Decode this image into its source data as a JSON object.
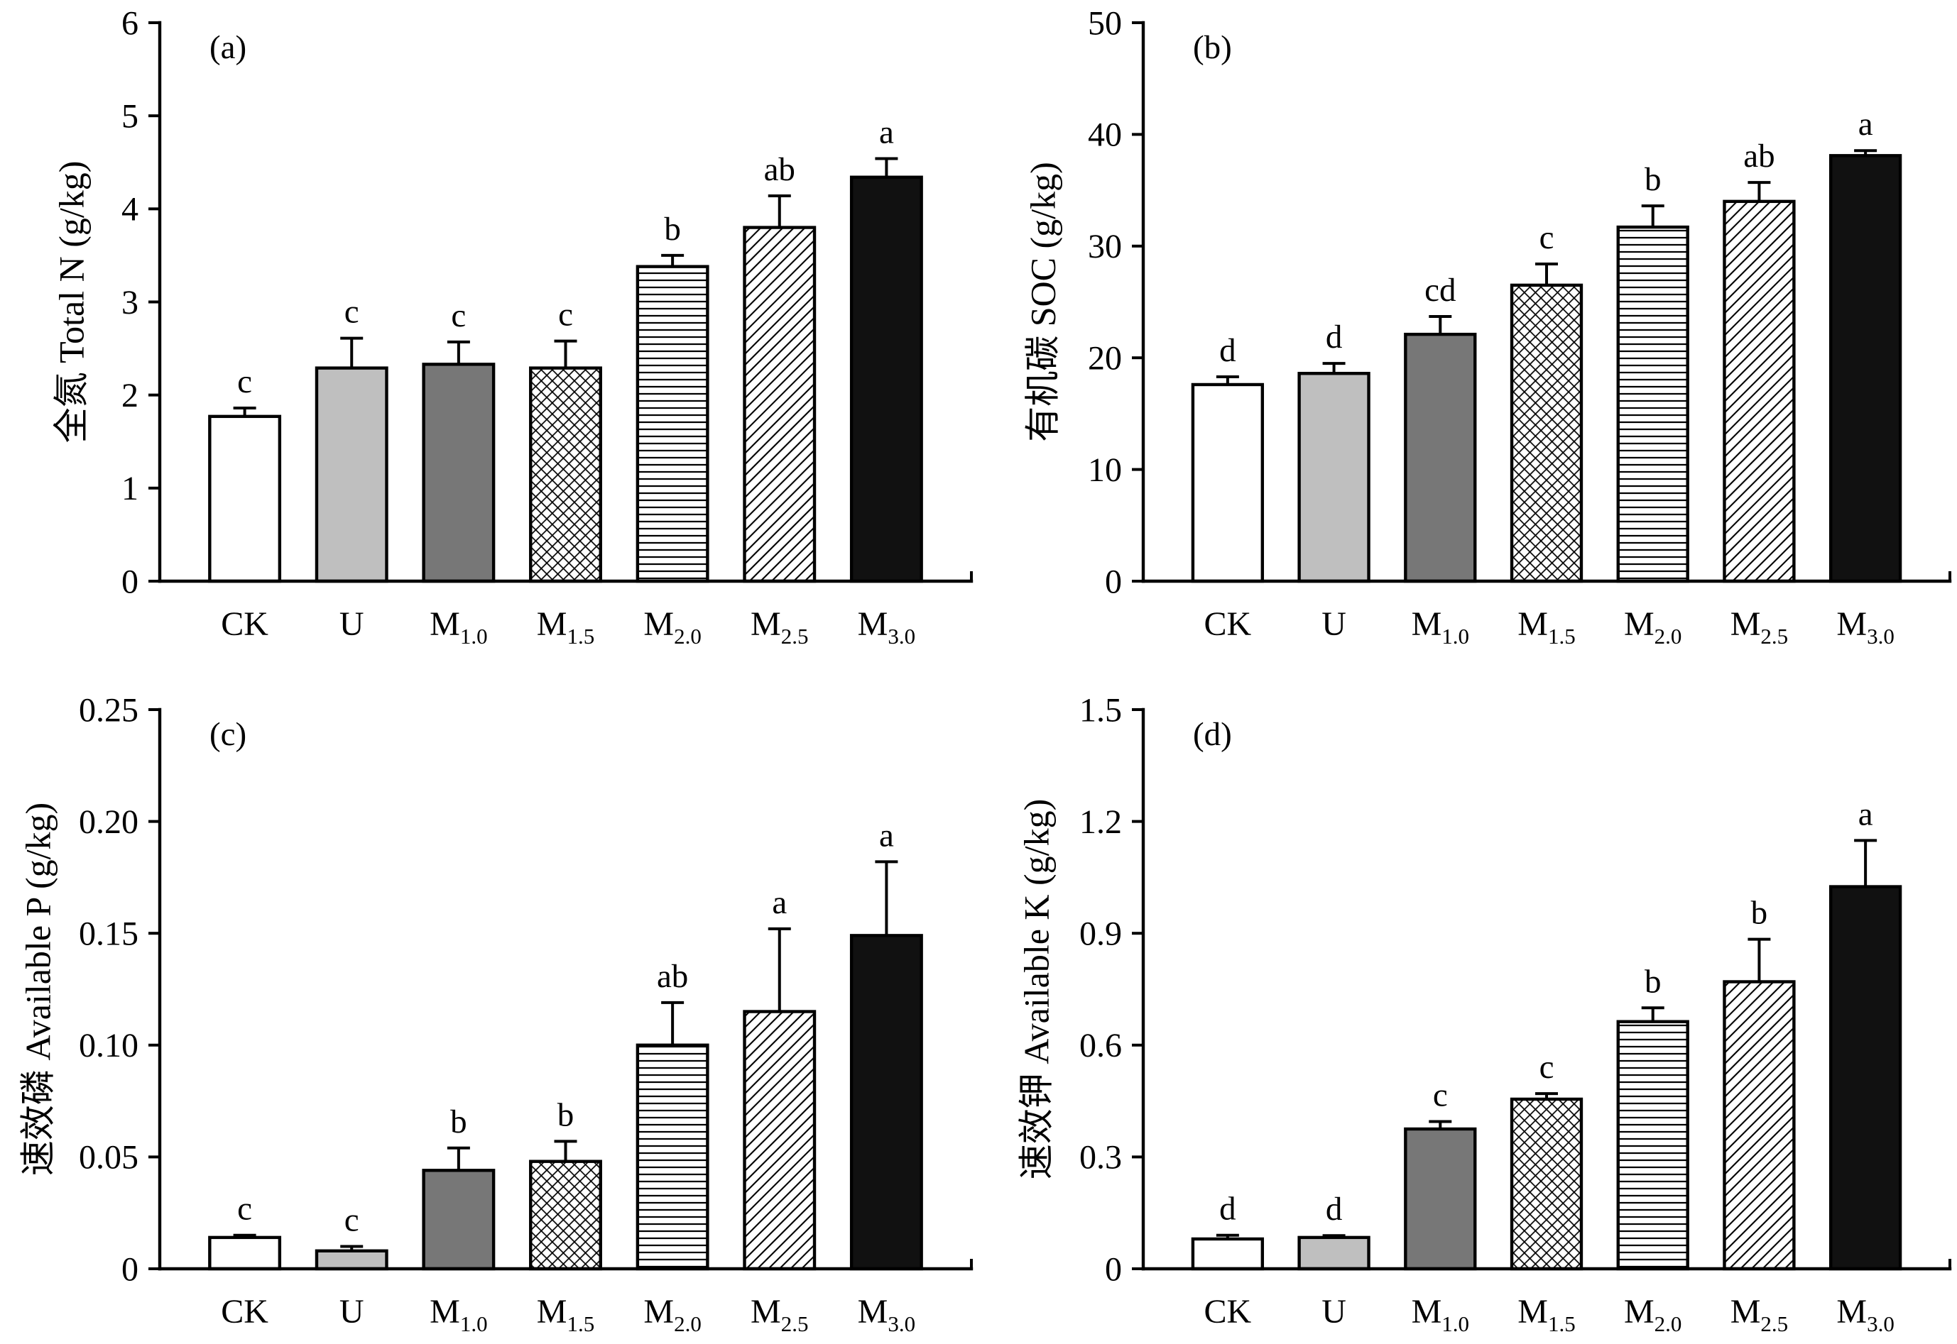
{
  "figure": {
    "series_fills": [
      "#ffffff",
      "#bfbfbf",
      "#777777",
      "pattern-crosshatch",
      "pattern-horizontal",
      "pattern-diagonal",
      "#111111"
    ]
  },
  "chart_data": [
    {
      "type": "bar",
      "panel_label": "(a)",
      "ylabel": "全氮 Total N (g/kg)",
      "ylim": [
        0,
        6
      ],
      "yticks": [
        0,
        1,
        2,
        3,
        4,
        5,
        6
      ],
      "ytick_labels": [
        "0",
        "1",
        "2",
        "3",
        "4",
        "5",
        "6"
      ],
      "categories": [
        {
          "base": "CK"
        },
        {
          "base": "U"
        },
        {
          "base": "M",
          "sub": "1.0"
        },
        {
          "base": "M",
          "sub": "1.5"
        },
        {
          "base": "M",
          "sub": "2.0"
        },
        {
          "base": "M",
          "sub": "2.5"
        },
        {
          "base": "M",
          "sub": "3.0"
        }
      ],
      "values": [
        1.77,
        2.29,
        2.33,
        2.29,
        3.38,
        3.8,
        4.34
      ],
      "errors": [
        0.09,
        0.32,
        0.24,
        0.29,
        0.12,
        0.34,
        0.2
      ],
      "letters": [
        "c",
        "c",
        "c",
        "c",
        "b",
        "ab",
        "a"
      ]
    },
    {
      "type": "bar",
      "panel_label": "(b)",
      "ylabel": "有机碳 SOC (g/kg)",
      "ylim": [
        0,
        50
      ],
      "yticks": [
        0,
        10,
        20,
        30,
        40,
        50
      ],
      "ytick_labels": [
        "0",
        "10",
        "20",
        "30",
        "40",
        "50"
      ],
      "categories": [
        {
          "base": "CK"
        },
        {
          "base": "U"
        },
        {
          "base": "M",
          "sub": "1.0"
        },
        {
          "base": "M",
          "sub": "1.5"
        },
        {
          "base": "M",
          "sub": "2.0"
        },
        {
          "base": "M",
          "sub": "2.5"
        },
        {
          "base": "M",
          "sub": "3.0"
        }
      ],
      "values": [
        17.6,
        18.6,
        22.1,
        26.5,
        31.7,
        34.0,
        38.1
      ],
      "errors": [
        0.7,
        0.9,
        1.6,
        1.9,
        1.9,
        1.7,
        0.45
      ],
      "letters": [
        "d",
        "d",
        "cd",
        "c",
        "b",
        "ab",
        "a"
      ]
    },
    {
      "type": "bar",
      "panel_label": "(c)",
      "ylabel": "速效磷 Available P (g/kg)",
      "ylim": [
        0,
        0.25
      ],
      "yticks": [
        0,
        0.05,
        0.1,
        0.15,
        0.2,
        0.25
      ],
      "ytick_labels": [
        "0",
        "0.05",
        "0.10",
        "0.15",
        "0.20",
        "0.25"
      ],
      "categories": [
        {
          "base": "CK"
        },
        {
          "base": "U"
        },
        {
          "base": "M",
          "sub": "1.0"
        },
        {
          "base": "M",
          "sub": "1.5"
        },
        {
          "base": "M",
          "sub": "2.0"
        },
        {
          "base": "M",
          "sub": "2.5"
        },
        {
          "base": "M",
          "sub": "3.0"
        }
      ],
      "values": [
        0.014,
        0.008,
        0.044,
        0.048,
        0.1,
        0.115,
        0.149
      ],
      "errors": [
        0.001,
        0.002,
        0.01,
        0.009,
        0.019,
        0.037,
        0.033
      ],
      "letters": [
        "c",
        "c",
        "b",
        "b",
        "ab",
        "a",
        "a"
      ]
    },
    {
      "type": "bar",
      "panel_label": "(d)",
      "ylabel": "速效钾 Available K (g/kg)",
      "ylim": [
        0,
        1.5
      ],
      "yticks": [
        0,
        0.3,
        0.6,
        0.9,
        1.2,
        1.5
      ],
      "ytick_labels": [
        "0",
        "0.3",
        "0.6",
        "0.9",
        "1.2",
        "1.5"
      ],
      "categories": [
        {
          "base": "CK"
        },
        {
          "base": "U"
        },
        {
          "base": "M",
          "sub": "1.0"
        },
        {
          "base": "M",
          "sub": "1.5"
        },
        {
          "base": "M",
          "sub": "2.0"
        },
        {
          "base": "M",
          "sub": "2.5"
        },
        {
          "base": "M",
          "sub": "3.0"
        }
      ],
      "values": [
        0.08,
        0.084,
        0.375,
        0.455,
        0.663,
        0.77,
        1.025
      ],
      "errors": [
        0.01,
        0.005,
        0.02,
        0.015,
        0.037,
        0.114,
        0.124
      ],
      "letters": [
        "d",
        "d",
        "c",
        "c",
        "b",
        "b",
        "a"
      ]
    }
  ]
}
